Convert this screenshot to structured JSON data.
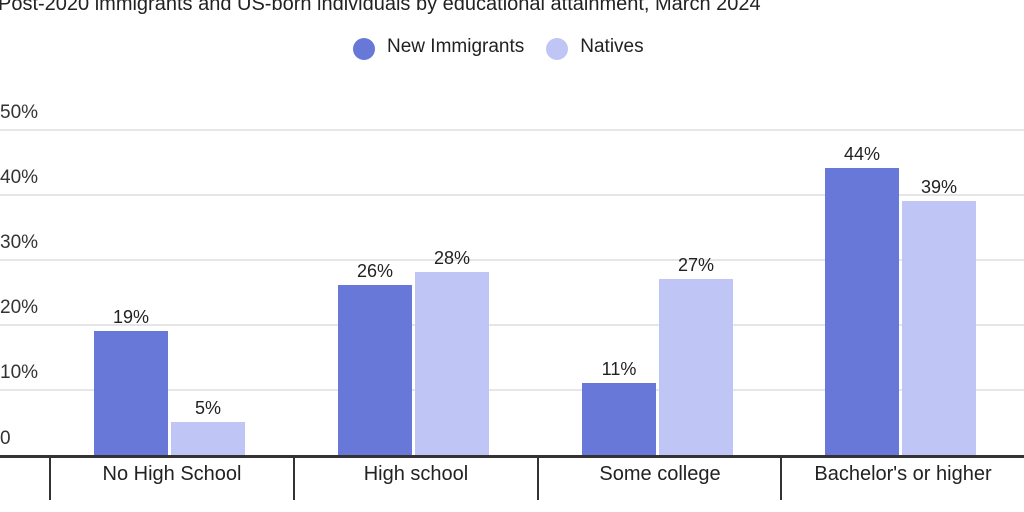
{
  "title": "Post-2020 immigrants and US-born individuals by educational attainment, March 2024",
  "legend": [
    {
      "label": "New Immigrants",
      "color": "#6878d9"
    },
    {
      "label": "Natives",
      "color": "#bfc6f5"
    }
  ],
  "y_axis": {
    "ticks": [
      {
        "label": "50%",
        "value": 50
      },
      {
        "label": "40%",
        "value": 40
      },
      {
        "label": "30%",
        "value": 30
      },
      {
        "label": "20%",
        "value": 20
      },
      {
        "label": "10%",
        "value": 10
      },
      {
        "label": "0",
        "value": 0
      }
    ]
  },
  "categories": [
    {
      "label": "No High School",
      "values": [
        {
          "value": 19,
          "label": "19%"
        },
        {
          "value": 5,
          "label": "5%"
        }
      ]
    },
    {
      "label": "High school",
      "values": [
        {
          "value": 26,
          "label": "26%"
        },
        {
          "value": 28,
          "label": "28%"
        }
      ]
    },
    {
      "label": "Some college",
      "values": [
        {
          "value": 11,
          "label": "11%"
        },
        {
          "value": 27,
          "label": "27%"
        }
      ]
    },
    {
      "label": "Bachelor's or higher",
      "values": [
        {
          "value": 44,
          "label": "44%"
        },
        {
          "value": 39,
          "label": "39%"
        }
      ]
    }
  ],
  "chart_data": {
    "type": "bar",
    "title": "Post-2020 immigrants and US-born individuals by educational attainment, March 2024",
    "categories": [
      "No High School",
      "High school",
      "Some college",
      "Bachelor's or higher"
    ],
    "series": [
      {
        "name": "New Immigrants",
        "color": "#6878d9",
        "values": [
          19,
          26,
          11,
          44
        ]
      },
      {
        "name": "Natives",
        "color": "#bfc6f5",
        "values": [
          5,
          28,
          27,
          39
        ]
      }
    ],
    "xlabel": "",
    "ylabel": "",
    "ylim": [
      0,
      50
    ],
    "yticks": [
      "0",
      "10%",
      "20%",
      "30%",
      "40%",
      "50%"
    ],
    "grid": true,
    "legend_position": "top"
  }
}
